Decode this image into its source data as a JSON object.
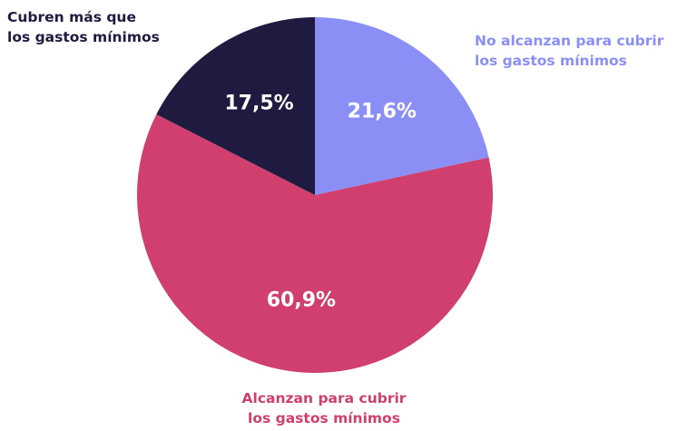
{
  "chart_data": {
    "type": "pie",
    "categories": [
      "No alcanzan para cubrir\nlos gastos mínimos",
      "Alcanzan para cubrir\nlos gastos mínimos",
      "Cubren más que\nlos gastos mínimos"
    ],
    "values": [
      21.6,
      60.9,
      17.5
    ],
    "value_labels": [
      "21,6%",
      "60,9%",
      "17,5%"
    ],
    "colors": [
      "#8b8ff5",
      "#d03f6e",
      "#1f1a3f"
    ]
  }
}
